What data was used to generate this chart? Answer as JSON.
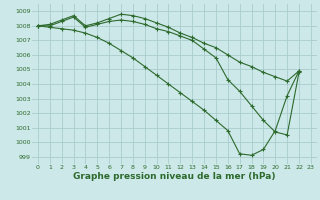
{
  "background_color": "#cce8e8",
  "grid_color": "#aacccc",
  "line_color": "#2d6a2d",
  "marker": "+",
  "xlabel": "Graphe pression niveau de la mer (hPa)",
  "xlabel_fontsize": 6.5,
  "ylim": [
    998.5,
    1009.5
  ],
  "xlim": [
    -0.5,
    23.5
  ],
  "yticks": [
    999,
    1000,
    1001,
    1002,
    1003,
    1004,
    1005,
    1006,
    1007,
    1008,
    1009
  ],
  "xticks": [
    0,
    1,
    2,
    3,
    4,
    5,
    6,
    7,
    8,
    9,
    10,
    11,
    12,
    13,
    14,
    15,
    16,
    17,
    18,
    19,
    20,
    21,
    22,
    23
  ],
  "series": [
    {
      "x": [
        0,
        1,
        2,
        3,
        4,
        5,
        6,
        7,
        8,
        9,
        10,
        11,
        12,
        13,
        14,
        15,
        16,
        17,
        18,
        19,
        20,
        21,
        22
      ],
      "y": [
        1008.0,
        1008.1,
        1008.4,
        1008.7,
        1008.0,
        1008.2,
        1008.5,
        1008.8,
        1008.7,
        1008.5,
        1008.2,
        1007.9,
        1007.5,
        1007.2,
        1006.8,
        1006.5,
        1006.0,
        1005.5,
        1005.2,
        1004.8,
        1004.5,
        1004.2,
        1004.9
      ]
    },
    {
      "x": [
        0,
        1,
        2,
        3,
        4,
        5,
        6,
        7,
        8,
        9,
        10,
        11,
        12,
        13,
        14,
        15,
        16,
        17,
        18,
        19,
        20,
        21,
        22
      ],
      "y": [
        1008.0,
        1008.0,
        1008.3,
        1008.6,
        1007.9,
        1008.1,
        1008.3,
        1008.4,
        1008.3,
        1008.1,
        1007.8,
        1007.6,
        1007.3,
        1007.0,
        1006.4,
        1005.8,
        1004.3,
        1003.5,
        1002.5,
        1001.5,
        1000.7,
        1000.5,
        1004.8
      ]
    },
    {
      "x": [
        0,
        1,
        2,
        3,
        4,
        5,
        6,
        7,
        8,
        9,
        10,
        11,
        12,
        13,
        14,
        15,
        16,
        17,
        18,
        19,
        20,
        21,
        22
      ],
      "y": [
        1008.0,
        1007.9,
        1007.8,
        1007.7,
        1007.5,
        1007.2,
        1006.8,
        1006.3,
        1005.8,
        1005.2,
        1004.6,
        1004.0,
        1003.4,
        1002.8,
        1002.2,
        1001.5,
        1000.8,
        999.2,
        999.1,
        999.5,
        1000.8,
        1003.2,
        1004.9
      ]
    }
  ]
}
